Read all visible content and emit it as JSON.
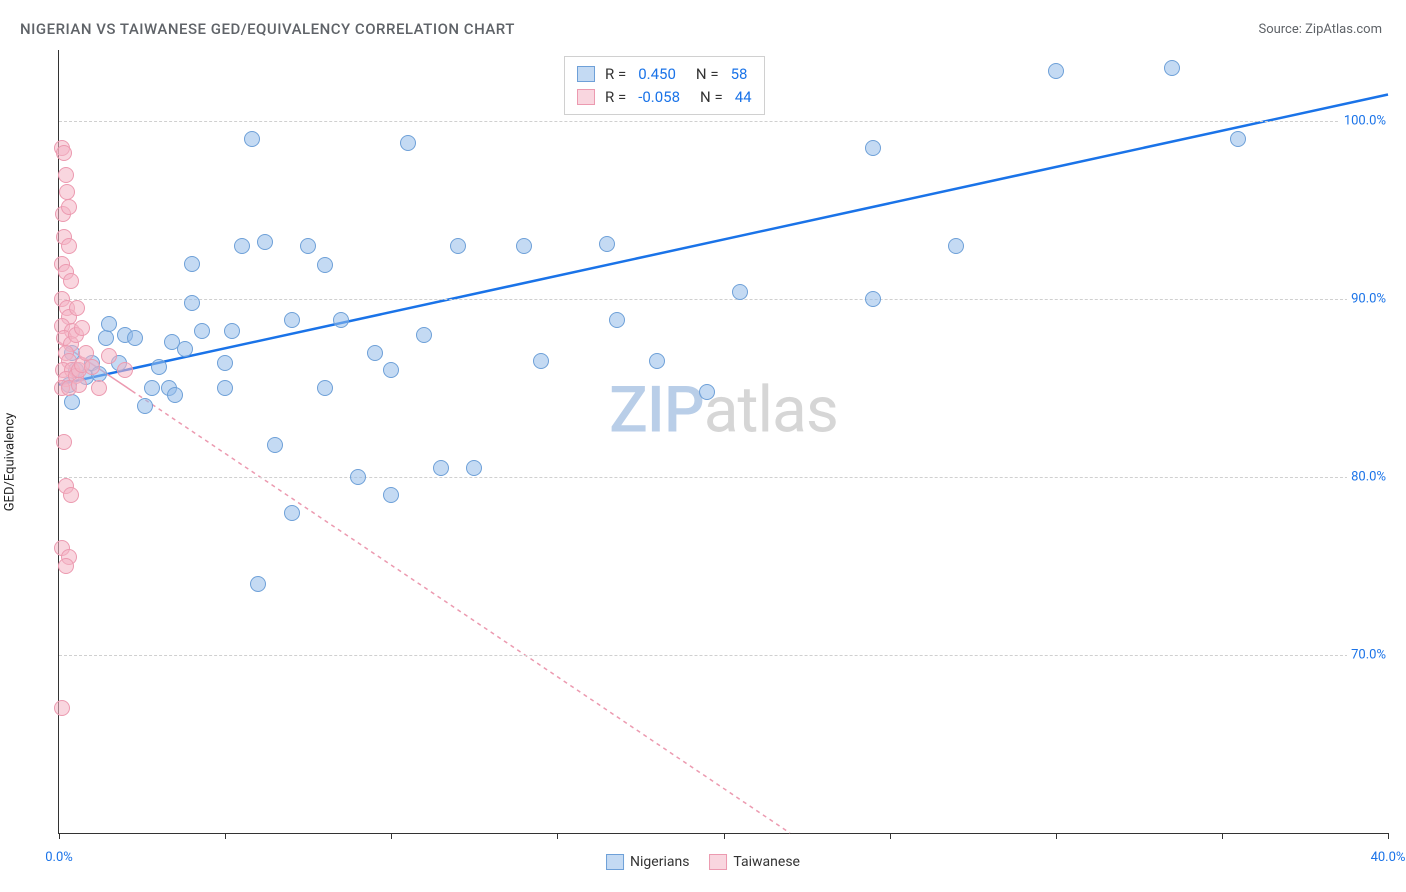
{
  "title": "NIGERIAN VS TAIWANESE GED/EQUIVALENCY CORRELATION CHART",
  "source": "Source: ZipAtlas.com",
  "watermark": {
    "zip": "ZIP",
    "atlas": "atlas"
  },
  "ylabel": "GED/Equivalency",
  "chart": {
    "type": "scatter",
    "xlim": [
      0,
      40
    ],
    "ylim": [
      60,
      104
    ],
    "xticks": [
      0,
      5,
      10,
      15,
      20,
      25,
      30,
      35,
      40
    ],
    "xticklabels": {
      "0": "0.0%",
      "40": "40.0%"
    },
    "yticks": [
      70,
      80,
      90,
      100
    ],
    "yticklabels": {
      "70": "70.0%",
      "80": "80.0%",
      "90": "90.0%",
      "100": "100.0%"
    },
    "grid_color": "#d0d0d0",
    "background_color": "#ffffff",
    "axis_label_color": "#1a73e8",
    "point_radius": 8,
    "series": [
      {
        "name": "Nigerians",
        "fill": "rgba(148,187,233,0.55)",
        "stroke": "#6ea0d8",
        "line_color": "#1a73e8",
        "line_width": 2.5,
        "line_dash": "none",
        "trend": {
          "x1": 0,
          "y1": 85.2,
          "x2": 40,
          "y2": 101.5
        },
        "R": "0.450",
        "N": "58",
        "points": [
          [
            0.3,
            85.2
          ],
          [
            0.4,
            87.0
          ],
          [
            0.5,
            86.0
          ],
          [
            0.4,
            84.2
          ],
          [
            0.8,
            85.6
          ],
          [
            1.0,
            86.4
          ],
          [
            1.2,
            85.8
          ],
          [
            1.4,
            87.8
          ],
          [
            1.5,
            88.6
          ],
          [
            1.8,
            86.4
          ],
          [
            2.0,
            88.0
          ],
          [
            2.3,
            87.8
          ],
          [
            2.6,
            84.0
          ],
          [
            2.8,
            85.0
          ],
          [
            3.0,
            86.2
          ],
          [
            3.4,
            87.6
          ],
          [
            3.3,
            85.0
          ],
          [
            3.5,
            84.6
          ],
          [
            3.8,
            87.2
          ],
          [
            4.0,
            89.8
          ],
          [
            4.3,
            88.2
          ],
          [
            4.0,
            92.0
          ],
          [
            5.0,
            86.4
          ],
          [
            5.2,
            88.2
          ],
          [
            5.5,
            93.0
          ],
          [
            5.0,
            85.0
          ],
          [
            5.8,
            99.0
          ],
          [
            6.2,
            93.2
          ],
          [
            6.5,
            81.8
          ],
          [
            7.0,
            88.8
          ],
          [
            7.0,
            78.0
          ],
          [
            6.0,
            74.0
          ],
          [
            7.5,
            93.0
          ],
          [
            8.0,
            85.0
          ],
          [
            8.0,
            91.9
          ],
          [
            8.5,
            88.8
          ],
          [
            9.0,
            80.0
          ],
          [
            9.5,
            87.0
          ],
          [
            10.0,
            86.0
          ],
          [
            10.5,
            98.8
          ],
          [
            10.0,
            79.0
          ],
          [
            11.0,
            88.0
          ],
          [
            11.5,
            80.5
          ],
          [
            12.0,
            93.0
          ],
          [
            12.5,
            80.5
          ],
          [
            14.0,
            93.0
          ],
          [
            14.5,
            86.5
          ],
          [
            16.5,
            93.1
          ],
          [
            16.8,
            88.8
          ],
          [
            18.0,
            86.5
          ],
          [
            19.5,
            84.8
          ],
          [
            20.5,
            90.4
          ],
          [
            24.5,
            98.5
          ],
          [
            24.5,
            90.0
          ],
          [
            27.0,
            93.0
          ],
          [
            30.0,
            102.8
          ],
          [
            33.5,
            103.0
          ],
          [
            35.5,
            99.0
          ]
        ]
      },
      {
        "name": "Taiwanese",
        "fill": "rgba(244,180,196,0.55)",
        "stroke": "#ec9ab0",
        "line_color": "#ec9ab0",
        "line_width": 1.5,
        "line_dash": "4 4",
        "solid_until_x": 2.2,
        "trend": {
          "x1": 0,
          "y1": 87.6,
          "x2": 22,
          "y2": 60
        },
        "R": "-0.058",
        "N": "44",
        "points": [
          [
            0.1,
            98.5
          ],
          [
            0.15,
            98.2
          ],
          [
            0.2,
            97.0
          ],
          [
            0.25,
            96.0
          ],
          [
            0.15,
            93.5
          ],
          [
            0.3,
            93.0
          ],
          [
            0.1,
            92.0
          ],
          [
            0.2,
            91.5
          ],
          [
            0.35,
            91.0
          ],
          [
            0.1,
            90.0
          ],
          [
            0.25,
            89.5
          ],
          [
            0.3,
            89.0
          ],
          [
            0.1,
            88.5
          ],
          [
            0.4,
            88.2
          ],
          [
            0.15,
            87.8
          ],
          [
            0.35,
            87.5
          ],
          [
            0.2,
            87.0
          ],
          [
            0.3,
            86.5
          ],
          [
            0.12,
            86.0
          ],
          [
            0.4,
            86.0
          ],
          [
            0.22,
            85.5
          ],
          [
            0.5,
            85.7
          ],
          [
            0.6,
            86.0
          ],
          [
            0.7,
            86.3
          ],
          [
            0.1,
            85.0
          ],
          [
            0.3,
            85.0
          ],
          [
            0.6,
            85.2
          ],
          [
            0.8,
            87.0
          ],
          [
            1.0,
            86.2
          ],
          [
            1.2,
            85.0
          ],
          [
            0.15,
            82.0
          ],
          [
            0.2,
            79.5
          ],
          [
            0.35,
            79.0
          ],
          [
            0.1,
            76.0
          ],
          [
            0.3,
            75.5
          ],
          [
            0.2,
            75.0
          ],
          [
            0.1,
            67.0
          ],
          [
            0.5,
            88.0
          ],
          [
            0.55,
            89.5
          ],
          [
            0.7,
            88.4
          ],
          [
            1.5,
            86.8
          ],
          [
            2.0,
            86.0
          ],
          [
            0.12,
            94.8
          ],
          [
            0.3,
            95.2
          ]
        ]
      }
    ]
  },
  "legend_top": {
    "rows": [
      {
        "sw_fill": "rgba(148,187,233,0.55)",
        "sw_stroke": "#6ea0d8",
        "R_label": "R =",
        "R_val": "0.450",
        "N_label": "N =",
        "N_val": "58"
      },
      {
        "sw_fill": "rgba(244,180,196,0.55)",
        "sw_stroke": "#ec9ab0",
        "R_label": "R =",
        "R_val": "-0.058",
        "N_label": "N =",
        "N_val": "44"
      }
    ]
  },
  "legend_bottom": {
    "items": [
      {
        "sw_fill": "rgba(148,187,233,0.55)",
        "sw_stroke": "#6ea0d8",
        "label": "Nigerians"
      },
      {
        "sw_fill": "rgba(244,180,196,0.55)",
        "sw_stroke": "#ec9ab0",
        "label": "Taiwanese"
      }
    ]
  }
}
